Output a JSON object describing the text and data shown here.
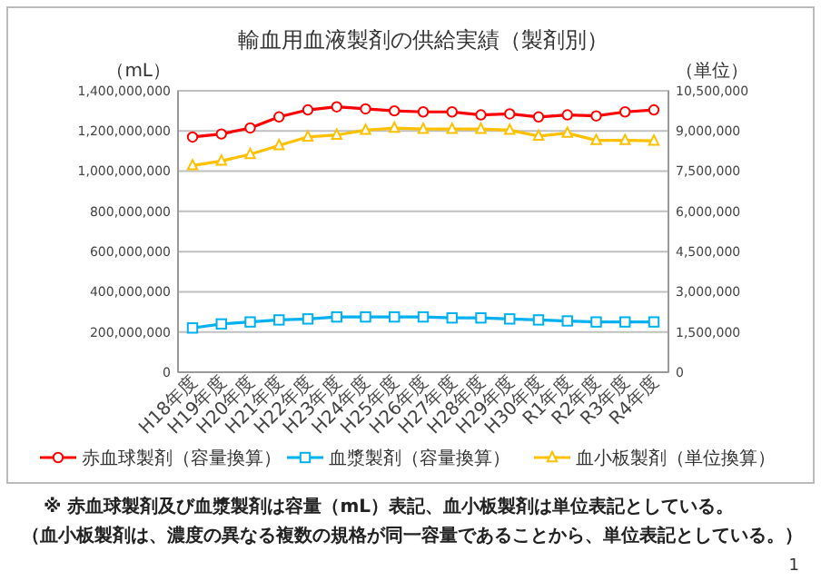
{
  "chart_data": {
    "type": "line",
    "title": "輸血用血液製剤の供給実績（製剤別）",
    "ylabel": "（mL）",
    "y2label": "（単位）",
    "categories": [
      "H18年度",
      "H19年度",
      "H20年度",
      "H21年度",
      "H22年度",
      "H23年度",
      "H24年度",
      "H25年度",
      "H26年度",
      "H27年度",
      "H28年度",
      "H29年度",
      "H30年度",
      "R1年度",
      "R2年度",
      "R3年度",
      "R4年度"
    ],
    "series": [
      {
        "name": "赤血球製剤（容量換算）",
        "color": "#ff0000",
        "marker": "circle",
        "values": [
          1170000000,
          1185000000,
          1215000000,
          1270000000,
          1305000000,
          1320000000,
          1310000000,
          1300000000,
          1295000000,
          1295000000,
          1280000000,
          1285000000,
          1270000000,
          1280000000,
          1275000000,
          1295000000,
          1305000000
        ]
      },
      {
        "name": "血漿製剤（容量換算）",
        "color": "#00b0f0",
        "marker": "square",
        "values": [
          220000000,
          240000000,
          250000000,
          260000000,
          265000000,
          275000000,
          275000000,
          275000000,
          275000000,
          270000000,
          270000000,
          265000000,
          260000000,
          255000000,
          250000000,
          250000000,
          250000000
        ]
      },
      {
        "name": "血小板製剤（単位換算）",
        "color": "#ffc000",
        "marker": "triangle",
        "axis": "y2",
        "values": [
          7710000,
          7880000,
          8130000,
          8460000,
          8780000,
          8850000,
          9030000,
          9110000,
          9070000,
          9070000,
          9070000,
          9030000,
          8810000,
          8920000,
          8650000,
          8650000,
          8630000
        ]
      }
    ],
    "ylim": [
      0,
      1400000000
    ],
    "yticks": [
      0,
      {
        "value": 200000000,
        "label": "200,000,000"
      },
      {
        "value": 400000000,
        "label": "400,000,000"
      },
      {
        "value": 600000000,
        "label": "600,000,000"
      },
      {
        "value": 800000000,
        "label": "800,000,000"
      },
      {
        "value": 1000000000,
        "label": "1,000,000,000"
      },
      {
        "value": 1200000000,
        "label": "1,200,000,000"
      },
      {
        "value": 1400000000,
        "label": "1,400,000,000"
      }
    ],
    "y2lim": [
      0,
      10500000
    ],
    "y2ticks": [
      0,
      {
        "value": 1500000,
        "label": "1,500,000"
      },
      {
        "value": 3000000,
        "label": "3,000,000"
      },
      {
        "value": 4500000,
        "label": "4,500,000"
      },
      {
        "value": 6000000,
        "label": "6,000,000"
      },
      {
        "value": 7500000,
        "label": "7,500,000"
      },
      {
        "value": 9000000,
        "label": "9,000,000"
      },
      {
        "value": 10500000,
        "label": "10,500,000"
      }
    ],
    "grid": "y",
    "legend": "bottom",
    "line_style": "solid",
    "annotations": [
      "※ 赤血球製剤及び血漿製剤は容量（mL）表記、血小板製剤は単位表記としている。",
      "（血小板製剤は、濃度の異なる複数の規格が同一容量であることから、単位表記としている。）",
      "1"
    ]
  }
}
